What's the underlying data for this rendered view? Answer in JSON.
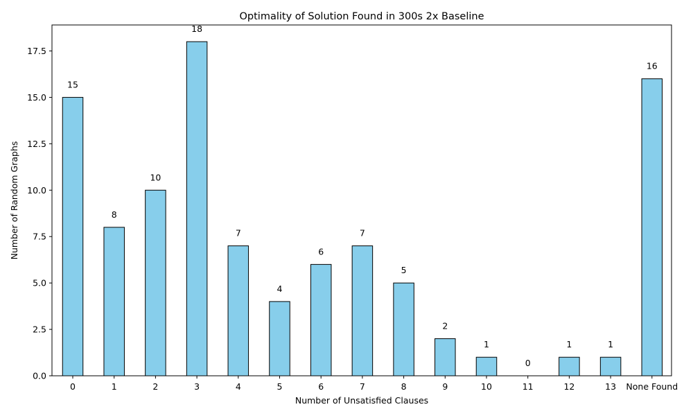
{
  "chart_data": {
    "type": "bar",
    "title": "Optimality of Solution Found in 300s 2x Baseline",
    "xlabel": "Number of Unsatisfied Clauses",
    "ylabel": "Number of Random Graphs",
    "categories": [
      "0",
      "1",
      "2",
      "3",
      "4",
      "5",
      "6",
      "7",
      "8",
      "9",
      "10",
      "11",
      "12",
      "13",
      "None Found"
    ],
    "values": [
      15,
      8,
      10,
      18,
      7,
      4,
      6,
      7,
      5,
      2,
      1,
      0,
      1,
      1,
      16
    ],
    "ylim": [
      0,
      18.9
    ],
    "yticks": [
      "0.0",
      "2.5",
      "5.0",
      "7.5",
      "10.0",
      "12.5",
      "15.0",
      "17.5"
    ],
    "ytick_values": [
      0,
      2.5,
      5,
      7.5,
      10,
      12.5,
      15,
      17.5
    ],
    "grid": false,
    "bar_color": "#87CEEB",
    "edge_color": "#000000"
  }
}
